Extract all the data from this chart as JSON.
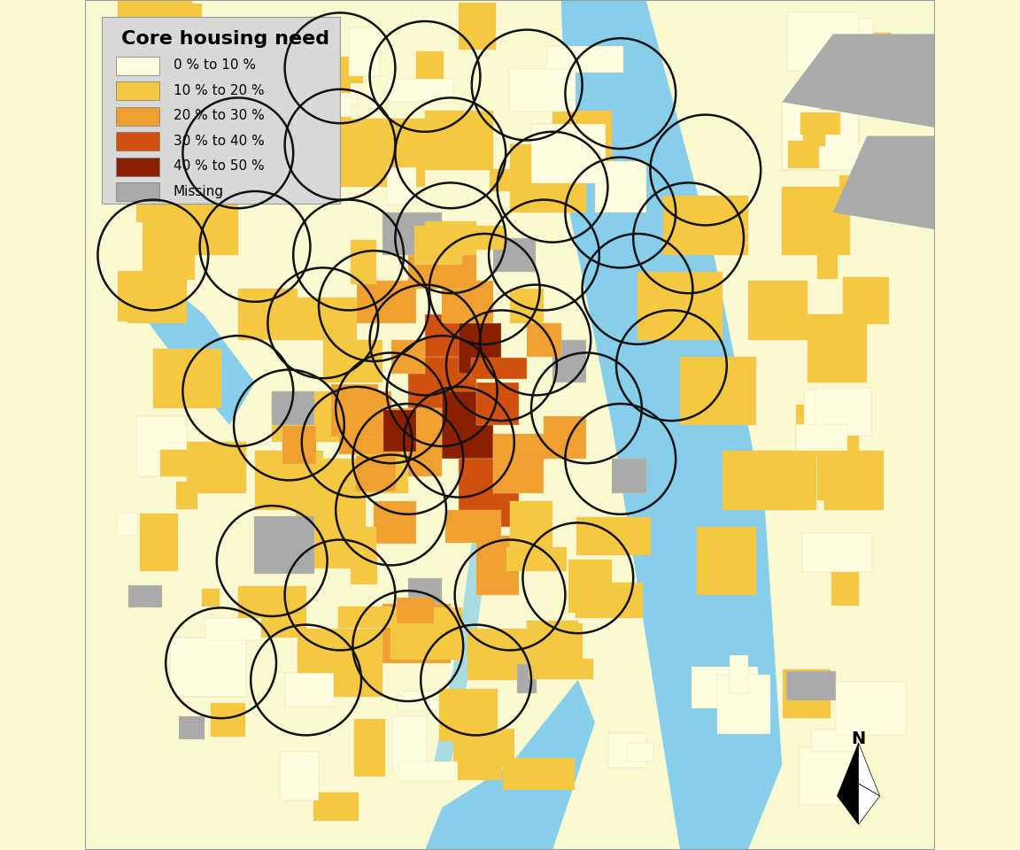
{
  "title": "Core housing need",
  "legend_labels": [
    "0 % to 10 %",
    "10 % to 20 %",
    "20 % to 30 %",
    "30 % to 40 %",
    "40 % to 50 %",
    "Missing"
  ],
  "legend_colors": [
    "#FFFDE0",
    "#F5C842",
    "#F0A030",
    "#D05010",
    "#8B2000",
    "#AAAAAA"
  ],
  "background_color": "#FAFAD2",
  "water_color": "#87CEEB",
  "walkshed_edgecolor": "#111111",
  "walkshed_linewidth": 1.8,
  "figsize": [
    11.52,
    9.6
  ],
  "dpi": 100
}
